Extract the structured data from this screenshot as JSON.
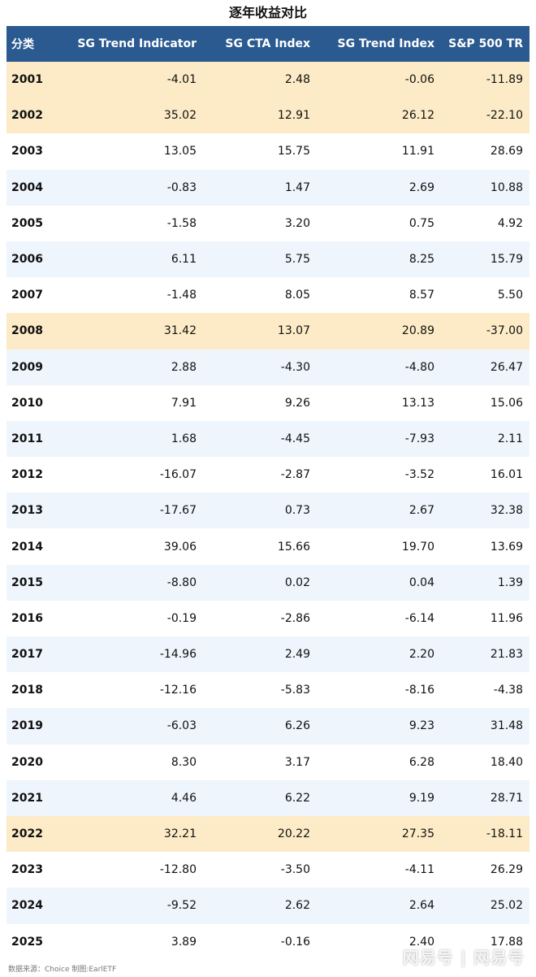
{
  "chart_data": {
    "type": "table",
    "title": "逐年收益对比",
    "columns": [
      "分类",
      "SG Trend Indicator",
      "SG CTA Index",
      "SG Trend Index",
      "S&P 500 TR"
    ],
    "rows": [
      {
        "year": "2001",
        "values": [
          "-4.01",
          "2.48",
          "-0.06",
          "-11.89"
        ],
        "highlight": true
      },
      {
        "year": "2002",
        "values": [
          "35.02",
          "12.91",
          "26.12",
          "-22.10"
        ],
        "highlight": true
      },
      {
        "year": "2003",
        "values": [
          "13.05",
          "15.75",
          "11.91",
          "28.69"
        ],
        "highlight": false
      },
      {
        "year": "2004",
        "values": [
          "-0.83",
          "1.47",
          "2.69",
          "10.88"
        ],
        "highlight": false
      },
      {
        "year": "2005",
        "values": [
          "-1.58",
          "3.20",
          "0.75",
          "4.92"
        ],
        "highlight": false
      },
      {
        "year": "2006",
        "values": [
          "6.11",
          "5.75",
          "8.25",
          "15.79"
        ],
        "highlight": false
      },
      {
        "year": "2007",
        "values": [
          "-1.48",
          "8.05",
          "8.57",
          "5.50"
        ],
        "highlight": false
      },
      {
        "year": "2008",
        "values": [
          "31.42",
          "13.07",
          "20.89",
          "-37.00"
        ],
        "highlight": true
      },
      {
        "year": "2009",
        "values": [
          "2.88",
          "-4.30",
          "-4.80",
          "26.47"
        ],
        "highlight": false
      },
      {
        "year": "2010",
        "values": [
          "7.91",
          "9.26",
          "13.13",
          "15.06"
        ],
        "highlight": false
      },
      {
        "year": "2011",
        "values": [
          "1.68",
          "-4.45",
          "-7.93",
          "2.11"
        ],
        "highlight": false
      },
      {
        "year": "2012",
        "values": [
          "-16.07",
          "-2.87",
          "-3.52",
          "16.01"
        ],
        "highlight": false
      },
      {
        "year": "2013",
        "values": [
          "-17.67",
          "0.73",
          "2.67",
          "32.38"
        ],
        "highlight": false
      },
      {
        "year": "2014",
        "values": [
          "39.06",
          "15.66",
          "19.70",
          "13.69"
        ],
        "highlight": false
      },
      {
        "year": "2015",
        "values": [
          "-8.80",
          "0.02",
          "0.04",
          "1.39"
        ],
        "highlight": false
      },
      {
        "year": "2016",
        "values": [
          "-0.19",
          "-2.86",
          "-6.14",
          "11.96"
        ],
        "highlight": false
      },
      {
        "year": "2017",
        "values": [
          "-14.96",
          "2.49",
          "2.20",
          "21.83"
        ],
        "highlight": false
      },
      {
        "year": "2018",
        "values": [
          "-12.16",
          "-5.83",
          "-8.16",
          "-4.38"
        ],
        "highlight": false
      },
      {
        "year": "2019",
        "values": [
          "-6.03",
          "6.26",
          "9.23",
          "31.48"
        ],
        "highlight": false
      },
      {
        "year": "2020",
        "values": [
          "8.30",
          "3.17",
          "6.28",
          "18.40"
        ],
        "highlight": false
      },
      {
        "year": "2021",
        "values": [
          "4.46",
          "6.22",
          "9.19",
          "28.71"
        ],
        "highlight": false
      },
      {
        "year": "2022",
        "values": [
          "32.21",
          "20.22",
          "27.35",
          "-18.11"
        ],
        "highlight": true
      },
      {
        "year": "2023",
        "values": [
          "-12.80",
          "-3.50",
          "-4.11",
          "26.29"
        ],
        "highlight": false
      },
      {
        "year": "2024",
        "values": [
          "-9.52",
          "2.62",
          "2.64",
          "25.02"
        ],
        "highlight": false
      },
      {
        "year": "2025",
        "values": [
          "3.89",
          "-0.16",
          "2.40",
          "17.88"
        ],
        "highlight": false
      }
    ]
  },
  "footer": "数据来源：Choice 制图:EarlETF",
  "watermark": "网易号 | 网易号",
  "colors": {
    "header_bg": "#2a5a8f",
    "highlight_bg": "#fcebc6",
    "stripe_bg": "#eef5fc",
    "plain_bg": "#ffffff"
  }
}
